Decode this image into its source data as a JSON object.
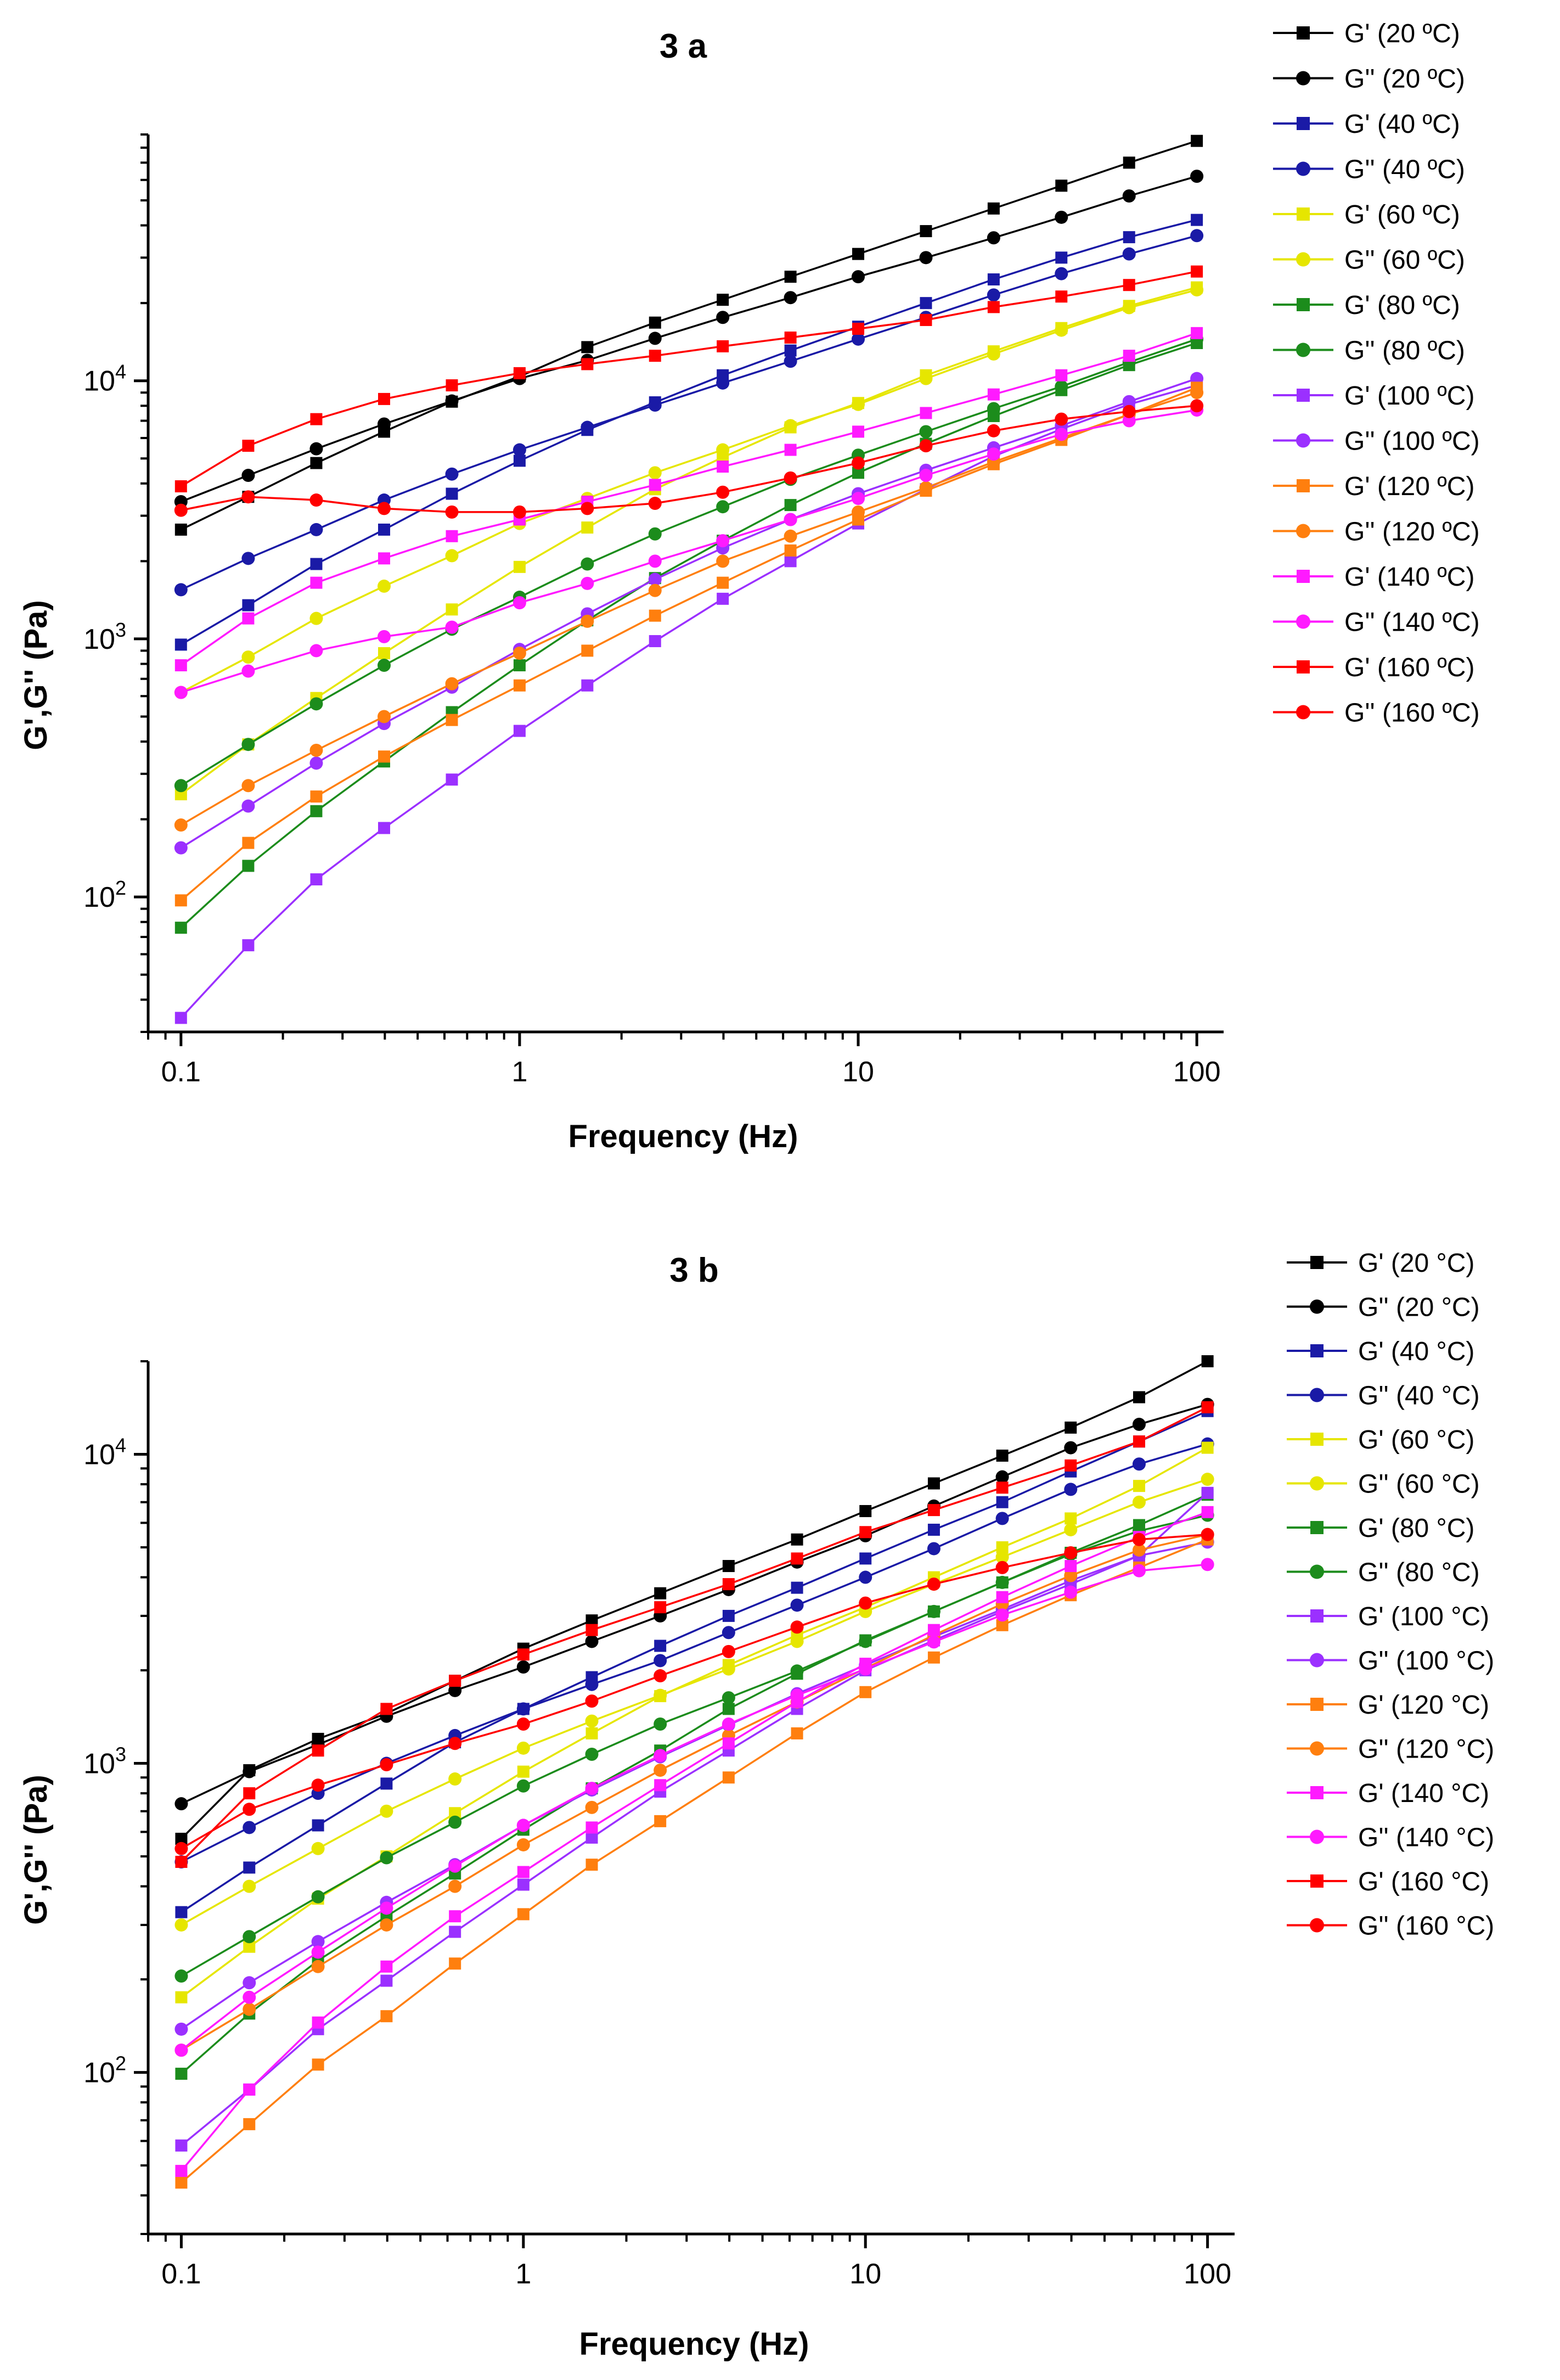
{
  "chart_data": [
    {
      "type": "line",
      "title": "3 a",
      "xlabel": "Frequency (Hz)",
      "ylabel": "G',G'' (Pa)",
      "xscale": "log",
      "yscale": "log",
      "xlim": [
        0.08,
        120
      ],
      "ylim": [
        30,
        90000
      ],
      "xticks": [
        {
          "value": 0.1,
          "label": "0.1"
        },
        {
          "value": 1,
          "label": "1"
        },
        {
          "value": 10,
          "label": "10"
        },
        {
          "value": 100,
          "label": "100"
        }
      ],
      "yticks": [
        {
          "value": 100,
          "base": "10",
          "exp": "2"
        },
        {
          "value": 1000,
          "base": "10",
          "exp": "3"
        },
        {
          "value": 10000,
          "base": "10",
          "exp": "4"
        }
      ],
      "legend_position": "right",
      "x": [
        0.1,
        0.158,
        0.251,
        0.398,
        0.631,
        1.0,
        1.585,
        2.512,
        3.981,
        6.31,
        10.0,
        15.85,
        25.12,
        39.81,
        63.1,
        100.0
      ],
      "series": [
        {
          "name": "G' (20 ºC)",
          "color": "#000000",
          "marker": "square",
          "values": [
            2650,
            3550,
            4800,
            6350,
            8300,
            10400,
            13500,
            16800,
            20600,
            25300,
            31000,
            38000,
            46500,
            57000,
            70000,
            85000
          ]
        },
        {
          "name": "G'' (20 ºC)",
          "color": "#000000",
          "marker": "circle",
          "values": [
            3400,
            4300,
            5450,
            6800,
            8350,
            10200,
            12000,
            14600,
            17600,
            21000,
            25300,
            30000,
            35800,
            43000,
            52000,
            62000
          ]
        },
        {
          "name": "G' (40 ºC)",
          "color": "#1a1aa6",
          "marker": "square",
          "values": [
            950,
            1350,
            1950,
            2650,
            3650,
            4900,
            6450,
            8250,
            10500,
            13100,
            16200,
            20000,
            24700,
            30000,
            36000,
            42000
          ]
        },
        {
          "name": "G'' (40 ºC)",
          "color": "#1a1aa6",
          "marker": "circle",
          "values": [
            1550,
            2050,
            2650,
            3450,
            4350,
            5400,
            6600,
            8050,
            9800,
            11900,
            14500,
            17600,
            21500,
            26000,
            31000,
            36500
          ]
        },
        {
          "name": "G' (60 ºC)",
          "color": "#e6e600",
          "marker": "square",
          "values": [
            250,
            390,
            590,
            880,
            1300,
            1900,
            2700,
            3800,
            5050,
            6600,
            8200,
            10500,
            13000,
            16000,
            19500,
            23000
          ]
        },
        {
          "name": "G'' (60 ºC)",
          "color": "#e6e600",
          "marker": "circle",
          "values": [
            620,
            850,
            1200,
            1600,
            2100,
            2800,
            3500,
            4400,
            5400,
            6700,
            8100,
            10200,
            12700,
            15700,
            19200,
            22500
          ]
        },
        {
          "name": "G' (80 ºC)",
          "color": "#1c8c1c",
          "marker": "square",
          "values": [
            76,
            132,
            215,
            335,
            520,
            790,
            1180,
            1720,
            2400,
            3300,
            4400,
            5700,
            7300,
            9200,
            11500,
            14000
          ]
        },
        {
          "name": "G'' (80 ºC)",
          "color": "#1c8c1c",
          "marker": "circle",
          "values": [
            270,
            390,
            560,
            790,
            1090,
            1450,
            1950,
            2550,
            3250,
            4150,
            5150,
            6350,
            7800,
            9500,
            11800,
            14500
          ]
        },
        {
          "name": "G' (100 ºC)",
          "color": "#9b30ff",
          "marker": "square",
          "values": [
            34,
            65,
            117,
            185,
            285,
            440,
            660,
            980,
            1430,
            2000,
            2800,
            3800,
            5100,
            6500,
            8100,
            9600
          ]
        },
        {
          "name": "G'' (100 ºC)",
          "color": "#9b30ff",
          "marker": "circle",
          "values": [
            155,
            225,
            330,
            470,
            650,
            910,
            1250,
            1700,
            2250,
            2900,
            3650,
            4500,
            5500,
            6700,
            8300,
            10200
          ]
        },
        {
          "name": "G' (120 ºC)",
          "color": "#ff7f0e",
          "marker": "square",
          "values": [
            97,
            162,
            245,
            350,
            485,
            660,
            900,
            1230,
            1650,
            2200,
            2900,
            3750,
            4750,
            5900,
            7400,
            9400
          ]
        },
        {
          "name": "G'' (120 ºC)",
          "color": "#ff7f0e",
          "marker": "circle",
          "values": [
            190,
            270,
            370,
            500,
            670,
            880,
            1170,
            1540,
            2000,
            2500,
            3100,
            3850,
            4850,
            6000,
            7400,
            9000
          ]
        },
        {
          "name": "G' (140 ºC)",
          "color": "#ff1aff",
          "marker": "square",
          "values": [
            790,
            1200,
            1650,
            2050,
            2500,
            2900,
            3400,
            3950,
            4650,
            5400,
            6350,
            7500,
            8850,
            10500,
            12500,
            15300
          ]
        },
        {
          "name": "G'' (140 ºC)",
          "color": "#ff1aff",
          "marker": "circle",
          "values": [
            620,
            750,
            900,
            1020,
            1110,
            1380,
            1640,
            2000,
            2400,
            2900,
            3500,
            4300,
            5200,
            6200,
            7000,
            7700
          ]
        },
        {
          "name": "G' (160 ºC)",
          "color": "#ff0000",
          "marker": "square",
          "values": [
            3900,
            5600,
            7100,
            8500,
            9600,
            10700,
            11600,
            12500,
            13600,
            14700,
            15900,
            17200,
            19300,
            21200,
            23500,
            26500
          ]
        },
        {
          "name": "G'' (160 ºC)",
          "color": "#ff0000",
          "marker": "circle",
          "values": [
            3150,
            3550,
            3450,
            3200,
            3100,
            3100,
            3200,
            3350,
            3700,
            4200,
            4800,
            5600,
            6400,
            7100,
            7600,
            8000
          ]
        }
      ]
    },
    {
      "type": "line",
      "title": "3 b",
      "xlabel": "Frequency (Hz)",
      "ylabel": "G',G'' (Pa)",
      "xscale": "log",
      "yscale": "log",
      "xlim": [
        0.08,
        120
      ],
      "ylim": [
        30,
        20000
      ],
      "xticks": [
        {
          "value": 0.1,
          "label": "0.1"
        },
        {
          "value": 1,
          "label": "1"
        },
        {
          "value": 10,
          "label": "10"
        },
        {
          "value": 100,
          "label": "100"
        }
      ],
      "yticks": [
        {
          "value": 100,
          "base": "10",
          "exp": "2"
        },
        {
          "value": 1000,
          "base": "10",
          "exp": "3"
        },
        {
          "value": 10000,
          "base": "10",
          "exp": "4"
        }
      ],
      "legend_position": "right",
      "x": [
        0.1,
        0.158,
        0.251,
        0.398,
        0.631,
        1.0,
        1.585,
        2.512,
        3.981,
        6.31,
        10.0,
        15.85,
        25.12,
        39.81,
        63.1,
        100.0
      ],
      "series": [
        {
          "name": "G' (20 °C)",
          "color": "#000000",
          "marker": "square",
          "values": [
            570,
            950,
            1200,
            1450,
            1850,
            2350,
            2900,
            3550,
            4350,
            5300,
            6550,
            8050,
            9900,
            12200,
            15300,
            20000
          ]
        },
        {
          "name": "G'' (20 °C)",
          "color": "#000000",
          "marker": "circle",
          "values": [
            740,
            940,
            1150,
            1420,
            1720,
            2050,
            2480,
            3000,
            3650,
            4480,
            5450,
            6800,
            8450,
            10500,
            12500,
            14500
          ]
        },
        {
          "name": "G' (40 °C)",
          "color": "#1a1aa6",
          "marker": "square",
          "values": [
            330,
            460,
            630,
            860,
            1170,
            1500,
            1900,
            2400,
            3000,
            3700,
            4600,
            5700,
            7000,
            8800,
            11000,
            13800
          ]
        },
        {
          "name": "G'' (40 °C)",
          "color": "#1a1aa6",
          "marker": "circle",
          "values": [
            480,
            620,
            800,
            1000,
            1230,
            1500,
            1800,
            2150,
            2650,
            3250,
            4000,
            4950,
            6200,
            7700,
            9300,
            10800
          ]
        },
        {
          "name": "G' (60 °C)",
          "color": "#e6e600",
          "marker": "square",
          "values": [
            175,
            255,
            365,
            500,
            690,
            940,
            1250,
            1650,
            2080,
            2600,
            3200,
            4000,
            5000,
            6200,
            7900,
            10500
          ]
        },
        {
          "name": "G'' (60 °C)",
          "color": "#e6e600",
          "marker": "circle",
          "values": [
            300,
            400,
            530,
            700,
            890,
            1120,
            1370,
            1660,
            2020,
            2480,
            3100,
            3800,
            4650,
            5700,
            7000,
            8300
          ]
        },
        {
          "name": "G' (80 °C)",
          "color": "#1c8c1c",
          "marker": "square",
          "values": [
            99,
            155,
            230,
            320,
            440,
            610,
            830,
            1100,
            1500,
            1950,
            2500,
            3100,
            3850,
            4800,
            5900,
            7400
          ]
        },
        {
          "name": "G'' (80 °C)",
          "color": "#1c8c1c",
          "marker": "circle",
          "values": [
            205,
            275,
            370,
            495,
            645,
            845,
            1070,
            1340,
            1630,
            1990,
            2480,
            3100,
            3850,
            4750,
            5650,
            6350
          ]
        },
        {
          "name": "G' (100 °C)",
          "color": "#9b30ff",
          "marker": "square",
          "values": [
            58,
            88,
            138,
            198,
            285,
            405,
            575,
            810,
            1100,
            1500,
            2000,
            2500,
            3100,
            3800,
            4700,
            7500
          ]
        },
        {
          "name": "G'' (100 °C)",
          "color": "#9b30ff",
          "marker": "circle",
          "values": [
            138,
            195,
            265,
            355,
            470,
            630,
            820,
            1050,
            1330,
            1680,
            2080,
            2570,
            3150,
            3900,
            4700,
            5200
          ]
        },
        {
          "name": "G' (120 °C)",
          "color": "#ff7f0e",
          "marker": "square",
          "values": [
            44,
            68,
            106,
            152,
            225,
            325,
            470,
            650,
            900,
            1250,
            1700,
            2200,
            2800,
            3500,
            4300,
            5300
          ]
        },
        {
          "name": "G'' (120 °C)",
          "color": "#ff7f0e",
          "marker": "circle",
          "values": [
            118,
            160,
            220,
            300,
            400,
            545,
            720,
            950,
            1230,
            1580,
            2030,
            2600,
            3280,
            4050,
            4900,
            5500
          ]
        },
        {
          "name": "G' (140 °C)",
          "color": "#ff1aff",
          "marker": "square",
          "values": [
            48,
            88,
            145,
            220,
            320,
            445,
            620,
            850,
            1160,
            1580,
            2100,
            2700,
            3450,
            4350,
            5400,
            6500
          ]
        },
        {
          "name": "G'' (140 °C)",
          "color": "#ff1aff",
          "marker": "circle",
          "values": [
            118,
            175,
            245,
            340,
            465,
            630,
            830,
            1060,
            1340,
            1660,
            2020,
            2470,
            3020,
            3580,
            4200,
            4400
          ]
        },
        {
          "name": "G' (160 °C)",
          "color": "#ff0000",
          "marker": "square",
          "values": [
            480,
            800,
            1100,
            1500,
            1850,
            2250,
            2700,
            3200,
            3800,
            4600,
            5600,
            6600,
            7800,
            9200,
            11000,
            14200
          ]
        },
        {
          "name": "G'' (160 °C)",
          "color": "#ff0000",
          "marker": "circle",
          "values": [
            530,
            710,
            850,
            990,
            1160,
            1340,
            1590,
            1920,
            2300,
            2760,
            3300,
            3800,
            4300,
            4800,
            5300,
            5500
          ]
        }
      ]
    }
  ]
}
